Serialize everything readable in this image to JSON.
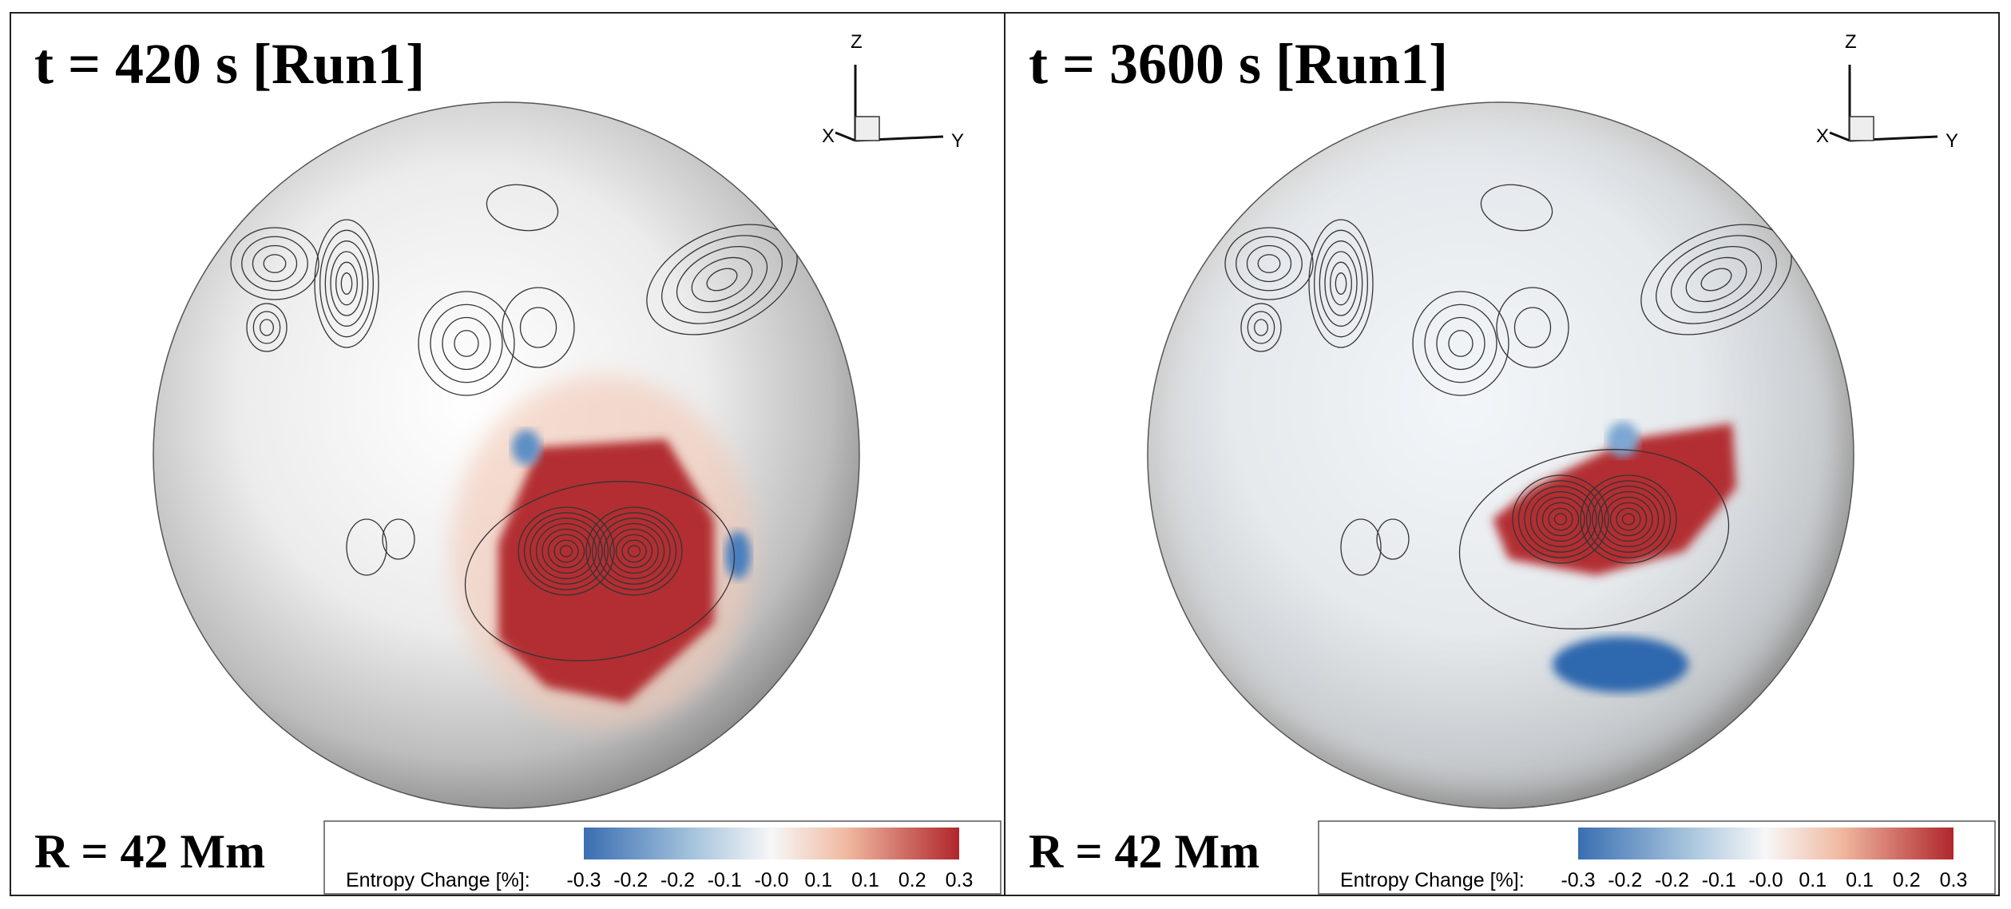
{
  "panels": [
    {
      "title": "t = 420 s [Run1]",
      "radius_label": "R = 42 Mm",
      "axes": {
        "z": "Z",
        "x": "X",
        "y": "Y"
      },
      "colorbar": {
        "label": "Entropy Change [%]:",
        "ticks": [
          "-0.3",
          "-0.2",
          "-0.2",
          "-0.1",
          "-0.0",
          "0.1",
          "0.1",
          "0.2",
          "0.3"
        ]
      }
    },
    {
      "title": "t = 3600 s [Run1]",
      "radius_label": "R = 42 Mm",
      "axes": {
        "z": "Z",
        "x": "X",
        "y": "Y"
      },
      "colorbar": {
        "label": "Entropy Change [%]:",
        "ticks": [
          "-0.3",
          "-0.2",
          "-0.2",
          "-0.1",
          "-0.0",
          "0.1",
          "0.1",
          "0.2",
          "0.3"
        ]
      }
    }
  ]
}
